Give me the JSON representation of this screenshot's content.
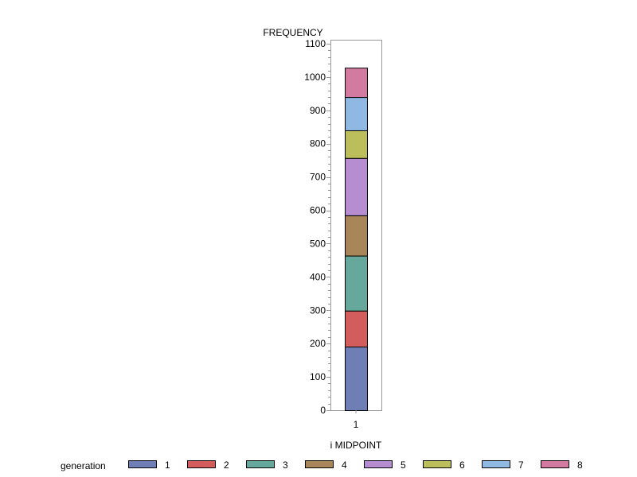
{
  "chart_data": {
    "type": "bar",
    "stacked": true,
    "categories": [
      "1"
    ],
    "ylabel": "FREQUENCY",
    "xlabel": "i MIDPOINT",
    "ylim": [
      0,
      1100
    ],
    "yticks": [
      "0",
      "100",
      "200",
      "300",
      "400",
      "500",
      "600",
      "700",
      "800",
      "900",
      "1000",
      "1100"
    ],
    "legend": {
      "title": "generation",
      "position": "bottom"
    },
    "series": [
      {
        "name": "1",
        "color": "#6f7fb5",
        "values": [
          191
        ]
      },
      {
        "name": "2",
        "color": "#d35d5d",
        "values": [
          108
        ]
      },
      {
        "name": "3",
        "color": "#66a99c",
        "values": [
          165
        ]
      },
      {
        "name": "4",
        "color": "#a8865a",
        "values": [
          121
        ]
      },
      {
        "name": "5",
        "color": "#b68dd0",
        "values": [
          172
        ]
      },
      {
        "name": "6",
        "color": "#bcbd5b",
        "values": [
          83
        ]
      },
      {
        "name": "7",
        "color": "#8fb9e2",
        "values": [
          100
        ]
      },
      {
        "name": "8",
        "color": "#d27a9f",
        "values": [
          88
        ]
      }
    ]
  }
}
